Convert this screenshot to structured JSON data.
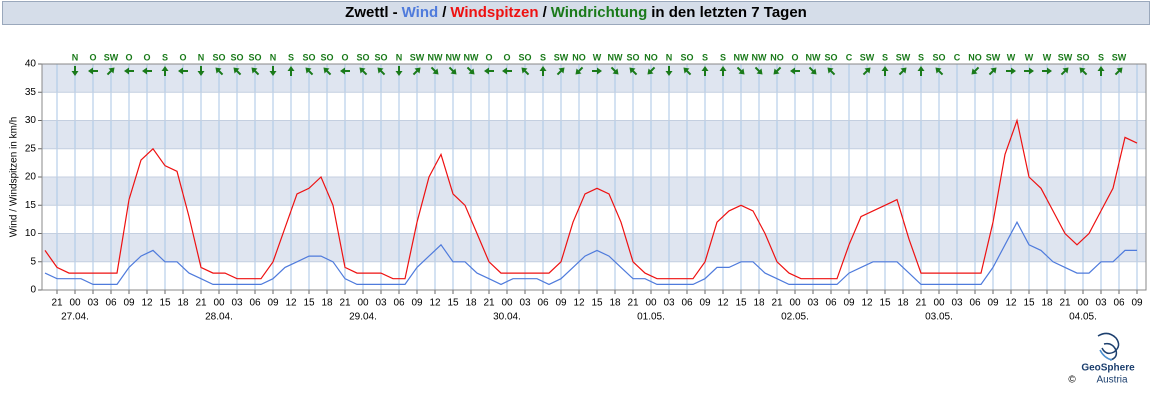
{
  "chart_data": {
    "type": "line",
    "title": {
      "prefix": "Zwettl -",
      "sep": "/",
      "direction": "Windrichtung",
      "suffix": "in den letzten 7 Tagen"
    },
    "y_label": "Wind / Windspitzen in km/h",
    "x": [
      -5,
      -3,
      -1,
      1,
      3,
      5,
      7,
      9,
      11,
      13,
      15,
      17,
      19,
      21,
      23,
      25,
      27,
      29,
      31,
      33,
      35,
      37,
      39,
      41,
      43,
      45,
      47,
      49,
      51,
      53,
      55,
      57,
      59,
      61,
      63,
      65,
      67,
      69,
      71,
      73,
      75,
      77,
      79,
      81,
      83,
      85,
      87,
      89,
      91,
      93,
      95,
      97,
      99,
      101,
      103,
      105,
      107,
      109,
      111,
      113,
      115,
      117,
      119,
      121,
      123,
      125,
      127,
      129,
      131,
      133,
      135,
      137,
      139,
      141,
      143,
      145,
      147,
      149,
      151,
      153,
      155,
      157,
      159,
      161,
      163,
      165,
      167,
      169,
      171,
      173,
      175,
      177
    ],
    "series": [
      {
        "name": "Wind",
        "color": "#4f7bdc",
        "values": [
          3,
          2,
          2,
          2,
          1,
          1,
          1,
          4,
          6,
          7,
          5,
          5,
          3,
          2,
          1,
          1,
          1,
          1,
          1,
          2,
          4,
          5,
          6,
          6,
          5,
          2,
          1,
          1,
          1,
          1,
          1,
          4,
          6,
          8,
          5,
          5,
          3,
          2,
          1,
          2,
          2,
          2,
          1,
          2,
          4,
          6,
          7,
          6,
          4,
          2,
          2,
          1,
          1,
          1,
          1,
          2,
          4,
          4,
          5,
          5,
          3,
          2,
          1,
          1,
          1,
          1,
          1,
          3,
          4,
          5,
          5,
          5,
          3,
          1,
          1,
          1,
          1,
          1,
          1,
          4,
          8,
          12,
          8,
          7,
          5,
          4,
          3,
          3,
          5,
          5,
          7,
          7
        ]
      },
      {
        "name": "Windspitzen",
        "color": "#ee1111",
        "values": [
          7,
          4,
          3,
          3,
          3,
          3,
          3,
          16,
          23,
          25,
          22,
          21,
          13,
          4,
          3,
          3,
          2,
          2,
          2,
          5,
          11,
          17,
          18,
          20,
          15,
          4,
          3,
          3,
          3,
          2,
          2,
          12,
          20,
          24,
          17,
          15,
          10,
          5,
          3,
          3,
          3,
          3,
          3,
          5,
          12,
          17,
          18,
          17,
          12,
          5,
          3,
          2,
          2,
          2,
          2,
          5,
          12,
          14,
          15,
          14,
          10,
          5,
          3,
          2,
          2,
          2,
          2,
          8,
          13,
          14,
          15,
          16,
          9,
          3,
          3,
          3,
          3,
          3,
          3,
          12,
          24,
          30,
          20,
          18,
          14,
          10,
          8,
          10,
          14,
          18,
          27,
          26
        ]
      }
    ],
    "direction_color": "#1a7a1a",
    "directions": [
      {
        "x": 0,
        "label": "N",
        "angle": 0
      },
      {
        "x": 3,
        "label": "O",
        "angle": 90
      },
      {
        "x": 6,
        "label": "SW",
        "angle": 225
      },
      {
        "x": 9,
        "label": "O",
        "angle": 90
      },
      {
        "x": 12,
        "label": "O",
        "angle": 90
      },
      {
        "x": 15,
        "label": "S",
        "angle": 180
      },
      {
        "x": 18,
        "label": "O",
        "angle": 90
      },
      {
        "x": 21,
        "label": "N",
        "angle": 0
      },
      {
        "x": 24,
        "label": "SO",
        "angle": 135
      },
      {
        "x": 27,
        "label": "SO",
        "angle": 135
      },
      {
        "x": 30,
        "label": "SO",
        "angle": 135
      },
      {
        "x": 33,
        "label": "N",
        "angle": 0
      },
      {
        "x": 36,
        "label": "S",
        "angle": 180
      },
      {
        "x": 39,
        "label": "SO",
        "angle": 135
      },
      {
        "x": 42,
        "label": "SO",
        "angle": 135
      },
      {
        "x": 45,
        "label": "O",
        "angle": 90
      },
      {
        "x": 48,
        "label": "SO",
        "angle": 135
      },
      {
        "x": 51,
        "label": "SO",
        "angle": 135
      },
      {
        "x": 54,
        "label": "N",
        "angle": 0
      },
      {
        "x": 57,
        "label": "SW",
        "angle": 225
      },
      {
        "x": 60,
        "label": "NW",
        "angle": 315
      },
      {
        "x": 63,
        "label": "NW",
        "angle": 315
      },
      {
        "x": 66,
        "label": "NW",
        "angle": 315
      },
      {
        "x": 69,
        "label": "O",
        "angle": 90
      },
      {
        "x": 72,
        "label": "O",
        "angle": 90
      },
      {
        "x": 75,
        "label": "SO",
        "angle": 135
      },
      {
        "x": 78,
        "label": "S",
        "angle": 180
      },
      {
        "x": 81,
        "label": "SW",
        "angle": 225
      },
      {
        "x": 84,
        "label": "NO",
        "angle": 45
      },
      {
        "x": 87,
        "label": "W",
        "angle": 270
      },
      {
        "x": 90,
        "label": "NW",
        "angle": 315
      },
      {
        "x": 93,
        "label": "SO",
        "angle": 135
      },
      {
        "x": 96,
        "label": "NO",
        "angle": 45
      },
      {
        "x": 99,
        "label": "N",
        "angle": 0
      },
      {
        "x": 102,
        "label": "SO",
        "angle": 135
      },
      {
        "x": 105,
        "label": "S",
        "angle": 180
      },
      {
        "x": 108,
        "label": "S",
        "angle": 180
      },
      {
        "x": 111,
        "label": "NW",
        "angle": 315
      },
      {
        "x": 114,
        "label": "NW",
        "angle": 315
      },
      {
        "x": 117,
        "label": "NO",
        "angle": 45
      },
      {
        "x": 120,
        "label": "O",
        "angle": 90
      },
      {
        "x": 123,
        "label": "NW",
        "angle": 315
      },
      {
        "x": 126,
        "label": "SO",
        "angle": 135
      },
      {
        "x": 129,
        "label": "C",
        "angle": null
      },
      {
        "x": 132,
        "label": "SW",
        "angle": 225
      },
      {
        "x": 135,
        "label": "S",
        "angle": 180
      },
      {
        "x": 138,
        "label": "SW",
        "angle": 225
      },
      {
        "x": 141,
        "label": "S",
        "angle": 180
      },
      {
        "x": 144,
        "label": "SO",
        "angle": 135
      },
      {
        "x": 147,
        "label": "C",
        "angle": null
      },
      {
        "x": 150,
        "label": "NO",
        "angle": 45
      },
      {
        "x": 153,
        "label": "SW",
        "angle": 225
      },
      {
        "x": 156,
        "label": "W",
        "angle": 270
      },
      {
        "x": 159,
        "label": "W",
        "angle": 270
      },
      {
        "x": 162,
        "label": "W",
        "angle": 270
      },
      {
        "x": 165,
        "label": "SW",
        "angle": 225
      },
      {
        "x": 168,
        "label": "SO",
        "angle": 135
      },
      {
        "x": 171,
        "label": "S",
        "angle": 180
      },
      {
        "x": 174,
        "label": "SW",
        "angle": 225
      }
    ],
    "xlim": [
      -5.5,
      178.5
    ],
    "xticks": [
      {
        "value": -3,
        "label": "21"
      },
      {
        "value": 0,
        "label": "00"
      },
      {
        "value": 3,
        "label": "03"
      },
      {
        "value": 6,
        "label": "06"
      },
      {
        "value": 9,
        "label": "09"
      },
      {
        "value": 12,
        "label": "12"
      },
      {
        "value": 15,
        "label": "15"
      },
      {
        "value": 18,
        "label": "18"
      },
      {
        "value": 21,
        "label": "21"
      },
      {
        "value": 24,
        "label": "00"
      },
      {
        "value": 27,
        "label": "03"
      },
      {
        "value": 30,
        "label": "06"
      },
      {
        "value": 33,
        "label": "09"
      },
      {
        "value": 36,
        "label": "12"
      },
      {
        "value": 39,
        "label": "15"
      },
      {
        "value": 42,
        "label": "18"
      },
      {
        "value": 45,
        "label": "21"
      },
      {
        "value": 48,
        "label": "00"
      },
      {
        "value": 51,
        "label": "03"
      },
      {
        "value": 54,
        "label": "06"
      },
      {
        "value": 57,
        "label": "09"
      },
      {
        "value": 60,
        "label": "12"
      },
      {
        "value": 63,
        "label": "15"
      },
      {
        "value": 66,
        "label": "18"
      },
      {
        "value": 69,
        "label": "21"
      },
      {
        "value": 72,
        "label": "00"
      },
      {
        "value": 75,
        "label": "03"
      },
      {
        "value": 78,
        "label": "06"
      },
      {
        "value": 81,
        "label": "09"
      },
      {
        "value": 84,
        "label": "12"
      },
      {
        "value": 87,
        "label": "15"
      },
      {
        "value": 90,
        "label": "18"
      },
      {
        "value": 93,
        "label": "21"
      },
      {
        "value": 96,
        "label": "00"
      },
      {
        "value": 99,
        "label": "03"
      },
      {
        "value": 102,
        "label": "06"
      },
      {
        "value": 105,
        "label": "09"
      },
      {
        "value": 108,
        "label": "12"
      },
      {
        "value": 111,
        "label": "15"
      },
      {
        "value": 114,
        "label": "18"
      },
      {
        "value": 117,
        "label": "21"
      },
      {
        "value": 120,
        "label": "00"
      },
      {
        "value": 123,
        "label": "03"
      },
      {
        "value": 126,
        "label": "06"
      },
      {
        "value": 129,
        "label": "09"
      },
      {
        "value": 132,
        "label": "12"
      },
      {
        "value": 135,
        "label": "15"
      },
      {
        "value": 138,
        "label": "18"
      },
      {
        "value": 141,
        "label": "21"
      },
      {
        "value": 144,
        "label": "00"
      },
      {
        "value": 147,
        "label": "03"
      },
      {
        "value": 150,
        "label": "06"
      },
      {
        "value": 153,
        "label": "09"
      },
      {
        "value": 156,
        "label": "12"
      },
      {
        "value": 159,
        "label": "15"
      },
      {
        "value": 162,
        "label": "18"
      },
      {
        "value": 165,
        "label": "21"
      },
      {
        "value": 168,
        "label": "00"
      },
      {
        "value": 171,
        "label": "03"
      },
      {
        "value": 174,
        "label": "06"
      },
      {
        "value": 177,
        "label": "09"
      }
    ],
    "date_labels": [
      {
        "value": 0,
        "label": "27.04."
      },
      {
        "value": 24,
        "label": "28.04."
      },
      {
        "value": 48,
        "label": "29.04."
      },
      {
        "value": 72,
        "label": "30.04."
      },
      {
        "value": 96,
        "label": "01.05."
      },
      {
        "value": 120,
        "label": "02.05."
      },
      {
        "value": 144,
        "label": "03.05."
      },
      {
        "value": 168,
        "label": "04.05."
      }
    ],
    "ylim": [
      0,
      40
    ],
    "yticks": [
      0,
      5,
      10,
      15,
      20,
      25,
      30,
      35,
      40
    ],
    "grid": true,
    "logo": {
      "name": "GeoSphere",
      "sub": "Austria",
      "copyright": "©"
    }
  }
}
